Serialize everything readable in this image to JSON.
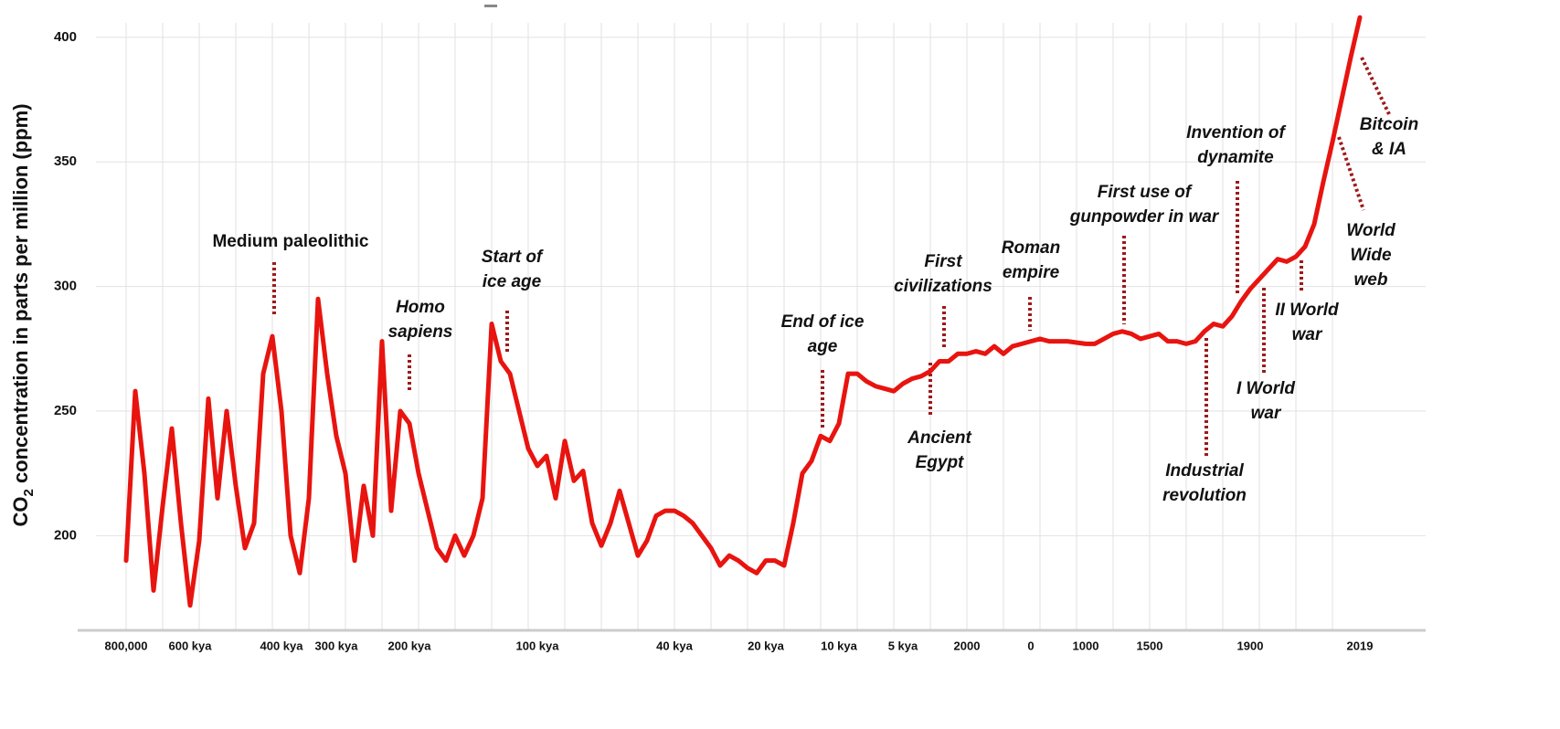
{
  "chart_data": {
    "type": "line",
    "y_label_parts": [
      "CO",
      "2",
      " concentration in parts per million (ppm)"
    ],
    "categories": [
      "800,000",
      null,
      null,
      null,
      null,
      null,
      null,
      "600 kya",
      null,
      null,
      null,
      null,
      null,
      null,
      null,
      null,
      null,
      "400 kya",
      null,
      null,
      null,
      null,
      null,
      "300 kya",
      null,
      null,
      null,
      null,
      null,
      null,
      null,
      "200 kya",
      null,
      null,
      null,
      null,
      null,
      null,
      null,
      null,
      null,
      null,
      null,
      null,
      null,
      "100 kya",
      null,
      null,
      null,
      null,
      null,
      null,
      null,
      null,
      null,
      null,
      null,
      null,
      null,
      null,
      "40 kya",
      null,
      null,
      null,
      null,
      null,
      null,
      null,
      null,
      null,
      "20 kya",
      null,
      null,
      null,
      null,
      null,
      null,
      null,
      "10 kya",
      null,
      null,
      null,
      null,
      null,
      null,
      "5 kya",
      null,
      null,
      null,
      null,
      null,
      null,
      "2000",
      null,
      null,
      null,
      null,
      null,
      null,
      "0",
      null,
      null,
      null,
      null,
      null,
      "1000",
      null,
      null,
      null,
      null,
      null,
      null,
      "1500",
      null,
      null,
      null,
      null,
      null,
      null,
      null,
      null,
      null,
      null,
      "1900",
      null,
      null,
      null,
      null,
      null,
      null,
      null,
      null,
      null,
      null,
      null,
      "2019"
    ],
    "values": [
      190,
      258,
      225,
      178,
      212,
      243,
      205,
      172,
      198,
      255,
      215,
      250,
      220,
      195,
      205,
      265,
      280,
      250,
      200,
      185,
      215,
      295,
      265,
      240,
      225,
      190,
      220,
      200,
      278,
      210,
      250,
      245,
      225,
      210,
      195,
      190,
      200,
      192,
      200,
      215,
      285,
      270,
      265,
      250,
      235,
      228,
      232,
      215,
      238,
      222,
      226,
      205,
      196,
      205,
      218,
      205,
      192,
      198,
      208,
      210,
      210,
      208,
      205,
      200,
      195,
      188,
      192,
      190,
      187,
      185,
      190,
      190,
      188,
      205,
      225,
      230,
      240,
      238,
      245,
      265,
      265,
      262,
      260,
      259,
      258,
      261,
      263,
      264,
      266,
      270,
      270,
      273,
      273,
      274,
      273,
      276,
      273,
      276,
      277,
      278,
      279,
      278,
      278,
      278,
      277.5,
      277,
      277,
      279,
      281,
      282,
      281,
      279,
      280,
      281,
      278,
      278,
      277,
      278,
      282,
      285,
      284,
      288,
      294,
      299,
      303,
      307,
      311,
      310,
      312,
      316,
      325,
      342,
      358,
      375,
      392,
      408
    ],
    "color": "#e8140f",
    "ylim": [
      162,
      415
    ],
    "yticks": [
      200,
      250,
      300,
      350,
      400
    ],
    "grid": true,
    "annotations": [
      {
        "lines": [
          "Medium paleolithic"
        ],
        "italic": false
      },
      {
        "lines": [
          "Homo",
          "sapiens"
        ],
        "italic": true
      },
      {
        "lines": [
          "Start of",
          "ice age"
        ],
        "italic": true
      },
      {
        "lines": [
          "End of ice",
          "age"
        ],
        "italic": true
      },
      {
        "lines": [
          "First",
          "civilizations"
        ],
        "italic": true
      },
      {
        "lines": [
          "Ancient",
          "Egypt"
        ],
        "italic": true
      },
      {
        "lines": [
          "Roman",
          "empire"
        ],
        "italic": true
      },
      {
        "lines": [
          "First use of",
          "gunpowder in war"
        ],
        "italic": true
      },
      {
        "lines": [
          "Invention of",
          "dynamite"
        ],
        "italic": true
      },
      {
        "lines": [
          "Industrial",
          "revolution"
        ],
        "italic": true
      },
      {
        "lines": [
          "I World",
          "war"
        ],
        "italic": true
      },
      {
        "lines": [
          "II World",
          "war"
        ],
        "italic": true
      },
      {
        "lines": [
          "World",
          "Wide",
          "web"
        ],
        "italic": true
      },
      {
        "lines": [
          "Bitcoin",
          "& IA"
        ],
        "italic": true
      }
    ]
  }
}
